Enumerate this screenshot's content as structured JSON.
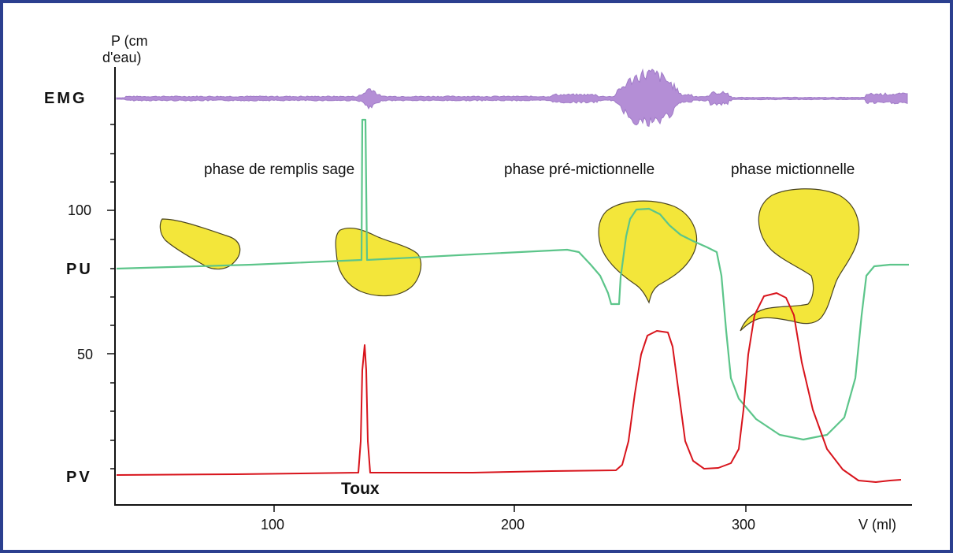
{
  "axis": {
    "y_title_line1": "P (cm",
    "y_title_line2": "d'eau)",
    "x_title": "V (ml)",
    "y_ticks": [
      "100",
      "50"
    ],
    "x_ticks": [
      "100",
      "200",
      "300"
    ]
  },
  "rows": {
    "emg": "EMG",
    "pu": "PU",
    "pv": "PV"
  },
  "phases": {
    "filling": "phase de remplis sage",
    "premicturition": "phase pré-mictionnelle",
    "micturition": "phase mictionnelle"
  },
  "annotations": {
    "cough": "Toux"
  },
  "colors": {
    "frame": "#2b3f8f",
    "emg": "#b48ed6",
    "pu": "#5cc58a",
    "pv": "#d8141c",
    "bladder_fill": "#f3e63a",
    "bladder_stroke": "#4a4420",
    "axis": "#111111"
  }
}
